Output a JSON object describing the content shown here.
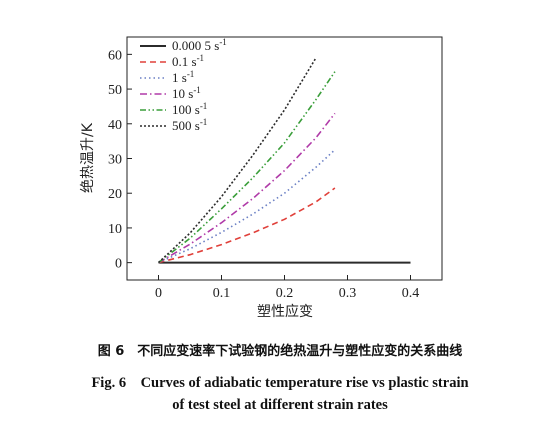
{
  "chart_data": {
    "type": "line",
    "title": "",
    "xlabel": "塑性应变",
    "ylabel": "绝热温升/K",
    "xlim": [
      -0.05,
      0.45
    ],
    "ylim": [
      -5,
      65
    ],
    "xticks": [
      0,
      0.1,
      0.2,
      0.3,
      0.4
    ],
    "xtick_labels": [
      "0",
      "0.1",
      "0.2",
      "0.3",
      "0.4"
    ],
    "yticks": [
      0,
      10,
      20,
      30,
      40,
      50,
      60
    ],
    "ytick_labels": [
      "0",
      "10",
      "20",
      "30",
      "40",
      "50",
      "60"
    ],
    "grid": false,
    "legend_position": "top-left",
    "series": [
      {
        "name": "0.000 5 s",
        "exp": "-1",
        "color": "#2b2b2b",
        "dash": "solid",
        "x": [
          0,
          0.05,
          0.1,
          0.15,
          0.2,
          0.25,
          0.3,
          0.35,
          0.4
        ],
        "y": [
          0,
          0,
          0,
          0,
          0,
          0,
          0,
          0,
          0
        ]
      },
      {
        "name": "0.1 s",
        "exp": "-1",
        "color": "#e0403a",
        "dash": "dashed",
        "x": [
          0,
          0.05,
          0.1,
          0.15,
          0.2,
          0.25,
          0.28
        ],
        "y": [
          0,
          2.3,
          5.2,
          8.6,
          12.5,
          17.5,
          21.5
        ]
      },
      {
        "name": "1 s",
        "exp": "-1",
        "color": "#6a7fc4",
        "dash": "dotted",
        "x": [
          0,
          0.05,
          0.1,
          0.15,
          0.2,
          0.25,
          0.28
        ],
        "y": [
          0,
          4,
          8.7,
          14,
          20,
          27.5,
          32.5
        ]
      },
      {
        "name": "10 s",
        "exp": "-1",
        "color": "#b03aa8",
        "dash": "dashdot",
        "x": [
          0,
          0.05,
          0.1,
          0.15,
          0.2,
          0.25,
          0.28
        ],
        "y": [
          0,
          5.3,
          11.5,
          18.5,
          26.5,
          36,
          43
        ]
      },
      {
        "name": "100 s",
        "exp": "-1",
        "color": "#3a9e3a",
        "dash": "dashdotdot",
        "x": [
          0,
          0.05,
          0.1,
          0.15,
          0.2,
          0.25,
          0.28
        ],
        "y": [
          0,
          7,
          15.5,
          24.5,
          34.5,
          47,
          55
        ]
      },
      {
        "name": "500 s",
        "exp": "-1",
        "color": "#2c2c2c",
        "dash": "dotted-dense",
        "x": [
          0,
          0.05,
          0.1,
          0.15,
          0.2,
          0.25
        ],
        "y": [
          0,
          8.5,
          19,
          31,
          44,
          59
        ]
      }
    ]
  },
  "caption": {
    "cn": "图 6　不同应变速率下试验钢的绝热温升与塑性应变的关系曲线",
    "en_line1": "Fig. 6　Curves of adiabatic temperature rise vs plastic strain",
    "en_line2": "of test steel at different strain rates"
  }
}
